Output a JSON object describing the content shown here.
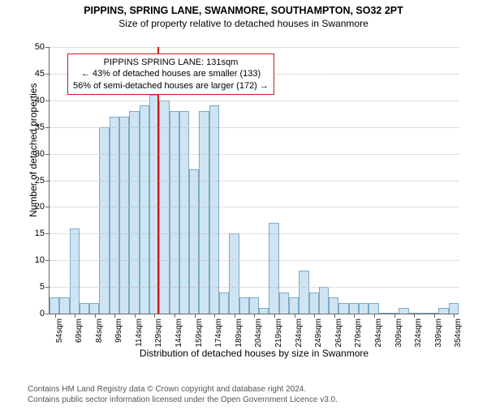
{
  "titles": {
    "main": "PIPPINS, SPRING LANE, SWANMORE, SOUTHAMPTON, SO32 2PT",
    "sub": "Size of property relative to detached houses in Swanmore"
  },
  "axes": {
    "ylabel": "Number of detached properties",
    "xlabel": "Distribution of detached houses by size in Swanmore",
    "ylim": [
      0,
      50
    ],
    "ytick_step": 5,
    "xtick_start": 54,
    "xtick_step": 15,
    "xtick_count": 21,
    "xtick_unit": "sqm",
    "bin_start": 50,
    "bin_width": 7.5,
    "bin_count": 41
  },
  "style": {
    "bar_fill": "#cfe4f2",
    "bar_stroke": "#7da9c7",
    "grid_color": "#bdbdbd",
    "marker_color": "#d01818",
    "annot_border": "#d01818",
    "annot_bg": "#ffffff",
    "axis_color": "#666666",
    "tick_fontsize": 11,
    "label_fontsize": 12,
    "title_fontsize": 12.5
  },
  "bars": [
    3,
    3,
    16,
    2,
    2,
    35,
    37,
    37,
    38,
    39,
    41,
    40,
    38,
    38,
    27,
    38,
    39,
    4,
    15,
    3,
    3,
    1,
    17,
    4,
    3,
    8,
    4,
    5,
    3,
    2,
    2,
    2,
    2,
    0,
    0,
    1,
    0,
    0,
    0,
    1,
    2
  ],
  "marker": {
    "x": 131
  },
  "annotation": {
    "line1": "PIPPINS SPRING LANE: 131sqm",
    "line2": "← 43% of detached houses are smaller (133)",
    "line3": "56% of semi-detached houses are larger (172) →"
  },
  "footer": {
    "line1": "Contains HM Land Registry data © Crown copyright and database right 2024.",
    "line2": "Contains public sector information licensed under the Open Government Licence v3.0."
  }
}
